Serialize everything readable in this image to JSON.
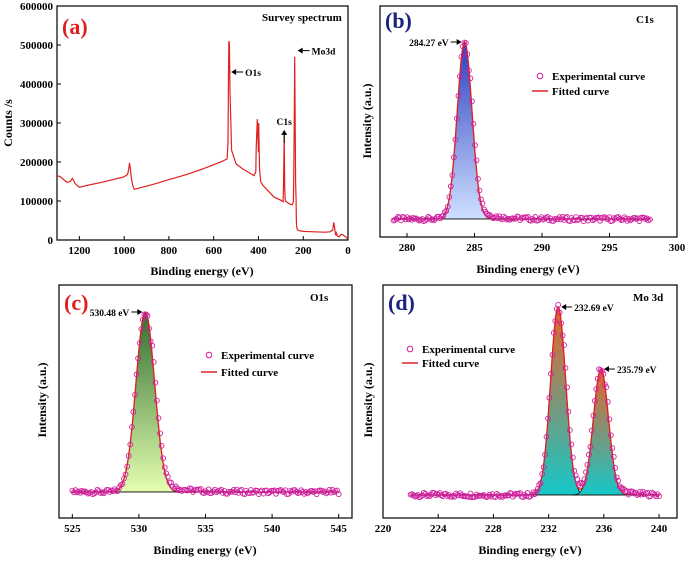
{
  "chart_data": [
    {
      "panel": "a",
      "type": "line",
      "tag": "(a)",
      "title": "Survey spectrum",
      "xlabel": "Binding energy (eV)",
      "ylabel": "Counts /s",
      "xlim": [
        1300,
        0
      ],
      "ylim": [
        0,
        600000
      ],
      "xticks": [
        "1200",
        "1000",
        "800",
        "600",
        "400",
        "200",
        "0"
      ],
      "xtick_values": [
        1200,
        1000,
        800,
        600,
        400,
        200,
        0
      ],
      "yticks": [
        "0",
        "100000",
        "200000",
        "300000",
        "400000",
        "500000",
        "600000"
      ],
      "ytick_values": [
        0,
        100000,
        200000,
        300000,
        400000,
        500000,
        600000
      ],
      "color": "#e02020",
      "x": [
        1300,
        1285,
        1270,
        1255,
        1240,
        1232,
        1225,
        1220,
        1200,
        1150,
        1100,
        1050,
        1000,
        985,
        980,
        976,
        972,
        968,
        962,
        955,
        900,
        850,
        800,
        750,
        700,
        650,
        600,
        560,
        540,
        536,
        534,
        532,
        530,
        527,
        520,
        500,
        470,
        440,
        420,
        412,
        410,
        405,
        400,
        399,
        397,
        395,
        390,
        380,
        330,
        300,
        290,
        288,
        285,
        283,
        280,
        260,
        250,
        244,
        242,
        240,
        238,
        236,
        234,
        232,
        231,
        230,
        228,
        226,
        220,
        200,
        150,
        100,
        80,
        68,
        64,
        60,
        58,
        55,
        52,
        48,
        40,
        30,
        20,
        10,
        5,
        0
      ],
      "y": [
        165000,
        162000,
        155000,
        148000,
        150000,
        158000,
        152000,
        145000,
        135000,
        142000,
        148000,
        155000,
        162000,
        168000,
        180000,
        198000,
        182000,
        160000,
        140000,
        130000,
        138000,
        146000,
        155000,
        163000,
        172000,
        182000,
        193000,
        202000,
        208000,
        250000,
        420000,
        510000,
        505000,
        380000,
        230000,
        195000,
        182000,
        172000,
        165000,
        175000,
        235000,
        310000,
        225000,
        300000,
        240000,
        180000,
        150000,
        140000,
        110000,
        102000,
        98000,
        135000,
        270000,
        135000,
        100000,
        92000,
        90000,
        98000,
        175000,
        320000,
        470000,
        290000,
        150000,
        100000,
        60000,
        38000,
        30000,
        26000,
        24000,
        22000,
        21000,
        20000,
        21000,
        26000,
        45000,
        32000,
        24000,
        12000,
        18000,
        10000,
        8000,
        15000,
        12000,
        8000,
        5000,
        3000
      ],
      "annotations": [
        {
          "text": "O1s",
          "x": 531,
          "y": 500000
        },
        {
          "text": "Mo3d",
          "x": 234,
          "y": 460000
        },
        {
          "text": "C1s",
          "x": 285,
          "y": 285000
        }
      ]
    },
    {
      "panel": "b",
      "type": "scatter+line",
      "tag": "(b)",
      "title": "C1s",
      "xlabel": "Binding energy (eV)",
      "ylabel": "Intensity (a.u.)",
      "xlim": [
        278,
        300
      ],
      "xticks": [
        "280",
        "285",
        "290",
        "295",
        "300"
      ],
      "xtick_values": [
        280,
        285,
        290,
        295,
        300
      ],
      "peaks": [
        {
          "label": "284.27 eV",
          "center": 284.27,
          "height": 1.0,
          "sigma": 0.55
        }
      ],
      "fit_range": [
        279,
        298
      ],
      "fill_top": "#2a3fbf",
      "fill_bottom": "#cfe0ff",
      "marker_color": "#d01e9e",
      "fit_color": "#e02020",
      "legend": [
        "Experimental curve",
        "Fitted curve"
      ]
    },
    {
      "panel": "c",
      "type": "scatter+line",
      "tag": "(c)",
      "title": "O1s",
      "xlabel": "Binding energy (eV)",
      "ylabel": "Intensity (a.u.)",
      "xlim": [
        524,
        546
      ],
      "xticks": [
        "525",
        "530",
        "535",
        "540",
        "545"
      ],
      "xtick_values": [
        525,
        530,
        535,
        540,
        545
      ],
      "peaks": [
        {
          "label": "530.48 eV",
          "center": 530.48,
          "height": 1.0,
          "sigma": 0.7
        }
      ],
      "fit_range": [
        525,
        545
      ],
      "fill_top": "#2f6e2f",
      "fill_bottom": "#e4ffb0",
      "marker_color": "#d01e9e",
      "fit_color": "#e02020",
      "legend": [
        "Experimental curve",
        "Fitted curve"
      ]
    },
    {
      "panel": "d",
      "type": "scatter+line",
      "tag": "(d)",
      "title": "Mo 3d",
      "xlabel": "Binding energy (eV)",
      "ylabel": "Intensity (a.u.)",
      "xlim": [
        220,
        241.3
      ],
      "xticks": [
        "220",
        "224",
        "228",
        "232",
        "236",
        "240"
      ],
      "xtick_values": [
        220,
        224,
        228,
        232,
        236,
        240
      ],
      "peaks": [
        {
          "label": "232.69 eV",
          "center": 232.69,
          "height": 1.0,
          "sigma": 0.55
        },
        {
          "label": "235.79 eV",
          "center": 235.79,
          "height": 0.67,
          "sigma": 0.55
        }
      ],
      "fit_range": [
        222,
        240
      ],
      "fill_top": "#e8622a",
      "fill_bottom": "#14c8c8",
      "marker_color": "#d01e9e",
      "fit_color": "#e02020",
      "legend": [
        "Experimental curve",
        "Fitted curve"
      ]
    }
  ]
}
